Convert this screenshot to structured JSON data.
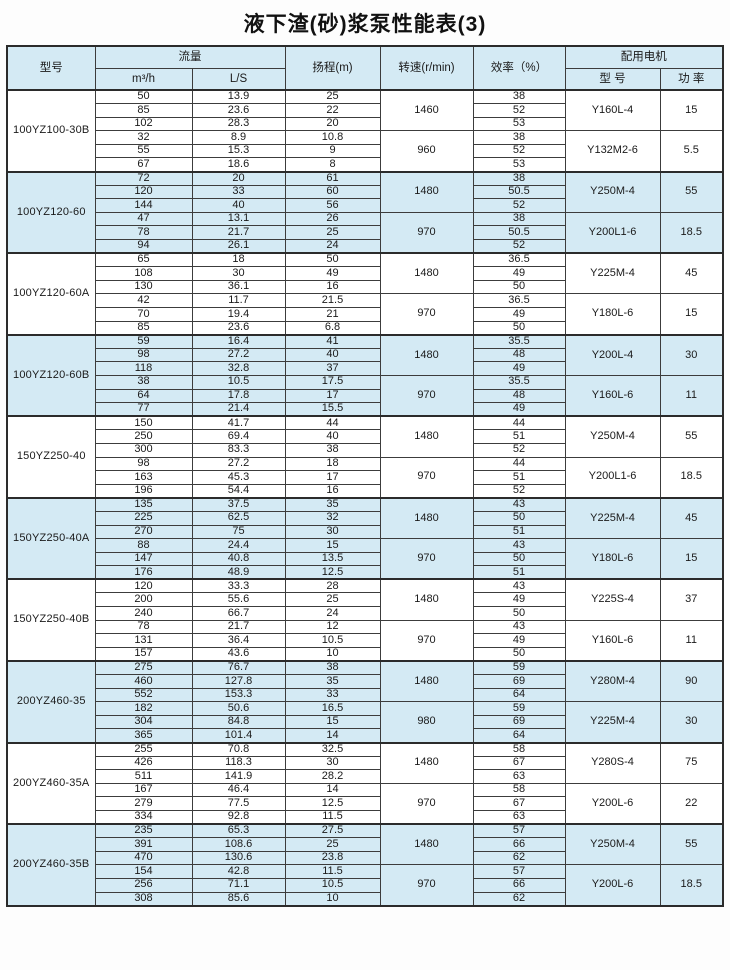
{
  "title": "液下渣(砂)浆泵性能表(3)",
  "colors": {
    "band": "#d4eaf4",
    "border": "#3c3c3c",
    "outer_border": "#2b2b2b",
    "text": "#1a1a1a"
  },
  "header": {
    "model": "型号",
    "flow": "流量",
    "flow_m3h": "m³/h",
    "flow_ls": "L/S",
    "head": "扬程(m)",
    "speed": "转速(r/min)",
    "efficiency": "效率（%）",
    "motor": "配用电机",
    "motor_model": "型 号",
    "motor_power": "功 率"
  },
  "blocks": [
    {
      "model": "100YZ100-30B",
      "shaded": false,
      "groups": [
        {
          "speed": "1460",
          "motor_model": "Y160L-4",
          "power": "15",
          "rows": [
            [
              "50",
              "13.9",
              "25",
              "38"
            ],
            [
              "85",
              "23.6",
              "22",
              "52"
            ],
            [
              "102",
              "28.3",
              "20",
              "53"
            ]
          ]
        },
        {
          "speed": "960",
          "motor_model": "Y132M2-6",
          "power": "5.5",
          "rows": [
            [
              "32",
              "8.9",
              "10.8",
              "38"
            ],
            [
              "55",
              "15.3",
              "9",
              "52"
            ],
            [
              "67",
              "18.6",
              "8",
              "53"
            ]
          ]
        }
      ]
    },
    {
      "model": "100YZ120-60",
      "shaded": true,
      "groups": [
        {
          "speed": "1480",
          "motor_model": "Y250M-4",
          "power": "55",
          "rows": [
            [
              "72",
              "20",
              "61",
              "38"
            ],
            [
              "120",
              "33",
              "60",
              "50.5"
            ],
            [
              "144",
              "40",
              "56",
              "52"
            ]
          ]
        },
        {
          "speed": "970",
          "motor_model": "Y200L1-6",
          "power": "18.5",
          "rows": [
            [
              "47",
              "13.1",
              "26",
              "38"
            ],
            [
              "78",
              "21.7",
              "25",
              "50.5"
            ],
            [
              "94",
              "26.1",
              "24",
              "52"
            ]
          ]
        }
      ]
    },
    {
      "model": "100YZ120-60A",
      "shaded": false,
      "groups": [
        {
          "speed": "1480",
          "motor_model": "Y225M-4",
          "power": "45",
          "rows": [
            [
              "65",
              "18",
              "50",
              "36.5"
            ],
            [
              "108",
              "30",
              "49",
              "49"
            ],
            [
              "130",
              "36.1",
              "16",
              "50"
            ]
          ]
        },
        {
          "speed": "970",
          "motor_model": "Y180L-6",
          "power": "15",
          "rows": [
            [
              "42",
              "11.7",
              "21.5",
              "36.5"
            ],
            [
              "70",
              "19.4",
              "21",
              "49"
            ],
            [
              "85",
              "23.6",
              "6.8",
              "50"
            ]
          ]
        }
      ]
    },
    {
      "model": "100YZ120-60B",
      "shaded": true,
      "groups": [
        {
          "speed": "1480",
          "motor_model": "Y200L-4",
          "power": "30",
          "rows": [
            [
              "59",
              "16.4",
              "41",
              "35.5"
            ],
            [
              "98",
              "27.2",
              "40",
              "48"
            ],
            [
              "118",
              "32.8",
              "37",
              "49"
            ]
          ]
        },
        {
          "speed": "970",
          "motor_model": "Y160L-6",
          "power": "11",
          "rows": [
            [
              "38",
              "10.5",
              "17.5",
              "35.5"
            ],
            [
              "64",
              "17.8",
              "17",
              "48"
            ],
            [
              "77",
              "21.4",
              "15.5",
              "49"
            ]
          ]
        }
      ]
    },
    {
      "model": "150YZ250-40",
      "shaded": false,
      "groups": [
        {
          "speed": "1480",
          "motor_model": "Y250M-4",
          "power": "55",
          "rows": [
            [
              "150",
              "41.7",
              "44",
              "44"
            ],
            [
              "250",
              "69.4",
              "40",
              "51"
            ],
            [
              "300",
              "83.3",
              "38",
              "52"
            ]
          ]
        },
        {
          "speed": "970",
          "motor_model": "Y200L1-6",
          "power": "18.5",
          "rows": [
            [
              "98",
              "27.2",
              "18",
              "44"
            ],
            [
              "163",
              "45.3",
              "17",
              "51"
            ],
            [
              "196",
              "54.4",
              "16",
              "52"
            ]
          ]
        }
      ]
    },
    {
      "model": "150YZ250-40A",
      "shaded": true,
      "groups": [
        {
          "speed": "1480",
          "motor_model": "Y225M-4",
          "power": "45",
          "rows": [
            [
              "135",
              "37.5",
              "35",
              "43"
            ],
            [
              "225",
              "62.5",
              "32",
              "50"
            ],
            [
              "270",
              "75",
              "30",
              "51"
            ]
          ]
        },
        {
          "speed": "970",
          "motor_model": "Y180L-6",
          "power": "15",
          "rows": [
            [
              "88",
              "24.4",
              "15",
              "43"
            ],
            [
              "147",
              "40.8",
              "13.5",
              "50"
            ],
            [
              "176",
              "48.9",
              "12.5",
              "51"
            ]
          ]
        }
      ]
    },
    {
      "model": "150YZ250-40B",
      "shaded": false,
      "groups": [
        {
          "speed": "1480",
          "motor_model": "Y225S-4",
          "power": "37",
          "rows": [
            [
              "120",
              "33.3",
              "28",
              "43"
            ],
            [
              "200",
              "55.6",
              "25",
              "49"
            ],
            [
              "240",
              "66.7",
              "24",
              "50"
            ]
          ]
        },
        {
          "speed": "970",
          "motor_model": "Y160L-6",
          "power": "11",
          "rows": [
            [
              "78",
              "21.7",
              "12",
              "43"
            ],
            [
              "131",
              "36.4",
              "10.5",
              "49"
            ],
            [
              "157",
              "43.6",
              "10",
              "50"
            ]
          ]
        }
      ]
    },
    {
      "model": "200YZ460-35",
      "shaded": true,
      "groups": [
        {
          "speed": "1480",
          "motor_model": "Y280M-4",
          "power": "90",
          "rows": [
            [
              "275",
              "76.7",
              "38",
              "59"
            ],
            [
              "460",
              "127.8",
              "35",
              "69"
            ],
            [
              "552",
              "153.3",
              "33",
              "64"
            ]
          ]
        },
        {
          "speed": "980",
          "motor_model": "Y225M-4",
          "power": "30",
          "rows": [
            [
              "182",
              "50.6",
              "16.5",
              "59"
            ],
            [
              "304",
              "84.8",
              "15",
              "69"
            ],
            [
              "365",
              "101.4",
              "14",
              "64"
            ]
          ]
        }
      ]
    },
    {
      "model": "200YZ460-35A",
      "shaded": false,
      "groups": [
        {
          "speed": "1480",
          "motor_model": "Y280S-4",
          "power": "75",
          "rows": [
            [
              "255",
              "70.8",
              "32.5",
              "58"
            ],
            [
              "426",
              "118.3",
              "30",
              "67"
            ],
            [
              "511",
              "141.9",
              "28.2",
              "63"
            ]
          ]
        },
        {
          "speed": "970",
          "motor_model": "Y200L-6",
          "power": "22",
          "rows": [
            [
              "167",
              "46.4",
              "14",
              "58"
            ],
            [
              "279",
              "77.5",
              "12.5",
              "67"
            ],
            [
              "334",
              "92.8",
              "11.5",
              "63"
            ]
          ]
        }
      ]
    },
    {
      "model": "200YZ460-35B",
      "shaded": true,
      "groups": [
        {
          "speed": "1480",
          "motor_model": "Y250M-4",
          "power": "55",
          "rows": [
            [
              "235",
              "65.3",
              "27.5",
              "57"
            ],
            [
              "391",
              "108.6",
              "25",
              "66"
            ],
            [
              "470",
              "130.6",
              "23.8",
              "62"
            ]
          ]
        },
        {
          "speed": "970",
          "motor_model": "Y200L-6",
          "power": "18.5",
          "rows": [
            [
              "154",
              "42.8",
              "11.5",
              "57"
            ],
            [
              "256",
              "71.1",
              "10.5",
              "66"
            ],
            [
              "308",
              "85.6",
              "10",
              "62"
            ]
          ]
        }
      ]
    }
  ]
}
